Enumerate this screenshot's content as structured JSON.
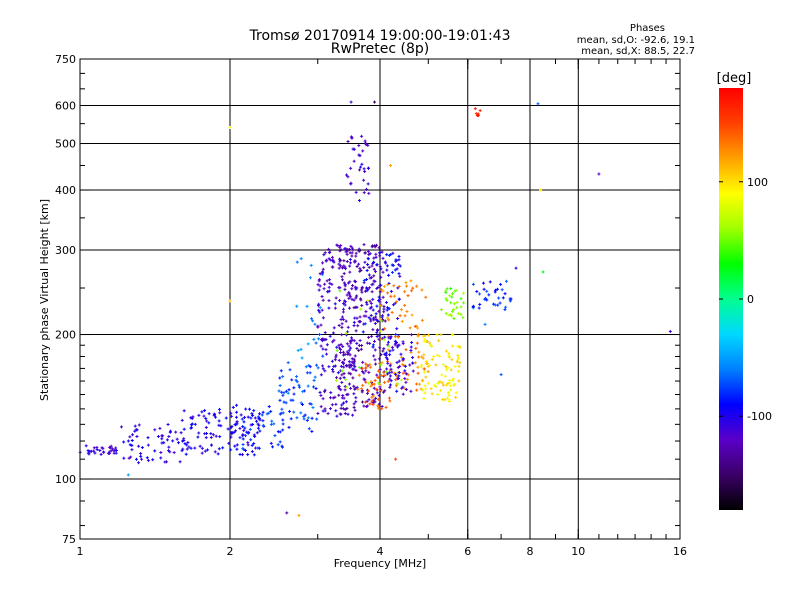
{
  "header": {
    "title_line1": "Tromsø 20170914 19:00:00-19:01:43",
    "title_line2": "RwPretec (8p)"
  },
  "stats": {
    "title": "Phases",
    "line_o": "mean, sd,O: -92.6, 19.1",
    "line_x": "mean, sd,X: 88.5, 22.7"
  },
  "colorbar": {
    "unit_label": "[deg]",
    "tick_values": [
      100,
      0,
      -100
    ],
    "tick_labels": [
      "100",
      "0",
      "-100"
    ],
    "range": [
      -180,
      180
    ],
    "colormap": [
      "#000000",
      "#3b0068",
      "#5a00c8",
      "#0000ff",
      "#0080ff",
      "#00d8ff",
      "#00ff90",
      "#00ff00",
      "#a0ff00",
      "#ffff00",
      "#ffa000",
      "#ff4000",
      "#ff0000"
    ]
  },
  "chart_data": {
    "type": "scatter",
    "title": "Tromsø 20170914 19:00:00-19:01:43",
    "subtitle": "RwPretec (8p)",
    "xlabel": "Frequency [MHz]",
    "ylabel": "Stationary phase Virtual Height [km]",
    "x_scale": "log",
    "y_scale": "log",
    "xlim": [
      1,
      16
    ],
    "ylim": [
      75,
      750
    ],
    "x_ticks": [
      1,
      2,
      4,
      6,
      8,
      10,
      16
    ],
    "x_tick_labels": [
      "1",
      "2",
      "4",
      "6",
      "8",
      "10",
      "16"
    ],
    "y_ticks": [
      75,
      100,
      200,
      300,
      400,
      500,
      600,
      750
    ],
    "y_tick_labels": [
      "75",
      "100",
      "200",
      "300",
      "400",
      "500",
      "600",
      "750"
    ],
    "x_grid": [
      2,
      4,
      6,
      8,
      10
    ],
    "y_grid": [
      100,
      200,
      300,
      400,
      500,
      600
    ],
    "grid": true,
    "clusters": [
      {
        "f_range": [
          1.0,
          1.18
        ],
        "h_range": [
          112,
          118
        ],
        "phase": -110,
        "count": 30
      },
      {
        "f_range": [
          1.18,
          1.6
        ],
        "h_range": [
          108,
          130
        ],
        "phase": -105,
        "count": 60
      },
      {
        "f_range": [
          1.6,
          2.3
        ],
        "h_range": [
          112,
          140
        ],
        "phase": -100,
        "count": 120
      },
      {
        "f_range": [
          2.0,
          2.6
        ],
        "h_range": [
          115,
          145
        ],
        "phase": -80,
        "count": 50
      },
      {
        "f_range": [
          2.5,
          3.0
        ],
        "h_range": [
          125,
          175
        ],
        "phase": -75,
        "count": 60
      },
      {
        "f_range": [
          2.7,
          3.1
        ],
        "h_range": [
          140,
          300
        ],
        "phase": -60,
        "count": 25
      },
      {
        "f_range": [
          3.0,
          3.6
        ],
        "h_range": [
          135,
          310
        ],
        "phase": -115,
        "count": 200
      },
      {
        "f_range": [
          3.3,
          4.1
        ],
        "h_range": [
          140,
          310
        ],
        "phase": -125,
        "count": 250
      },
      {
        "f_range": [
          3.4,
          3.8
        ],
        "h_range": [
          380,
          520
        ],
        "phase": -115,
        "count": 35
      },
      {
        "f_range": [
          3.7,
          4.4
        ],
        "h_range": [
          180,
          300
        ],
        "phase": -95,
        "count": 90
      },
      {
        "f_range": [
          3.6,
          4.2
        ],
        "h_range": [
          140,
          175
        ],
        "phase": 140,
        "count": 40
      },
      {
        "f_range": [
          4.0,
          5.0
        ],
        "h_range": [
          150,
          260
        ],
        "phase": 130,
        "count": 90
      },
      {
        "f_range": [
          4.1,
          4.7
        ],
        "h_range": [
          150,
          200
        ],
        "phase": -110,
        "count": 60
      },
      {
        "f_range": [
          4.8,
          5.8
        ],
        "h_range": [
          145,
          200
        ],
        "phase": 95,
        "count": 90
      },
      {
        "f_range": [
          5.3,
          5.9
        ],
        "h_range": [
          215,
          250
        ],
        "phase": 50,
        "count": 30
      },
      {
        "f_range": [
          6.1,
          7.4
        ],
        "h_range": [
          225,
          260
        ],
        "phase": -80,
        "count": 35
      },
      {
        "f_range": [
          6.2,
          6.4
        ],
        "h_range": [
          565,
          595
        ],
        "phase": 165,
        "count": 6
      },
      {
        "f_range": [
          3.2,
          4.5
        ],
        "h_range": [
          150,
          250
        ],
        "phase": 60,
        "count": 20
      }
    ],
    "outliers": [
      {
        "x": 3.5,
        "y": 610,
        "phase": -110
      },
      {
        "x": 3.9,
        "y": 610,
        "phase": -150
      },
      {
        "x": 2.0,
        "y": 540,
        "phase": 90
      },
      {
        "x": 2.6,
        "y": 85,
        "phase": -130
      },
      {
        "x": 2.75,
        "y": 84,
        "phase": 120
      },
      {
        "x": 1.25,
        "y": 102,
        "phase": -50
      },
      {
        "x": 8.3,
        "y": 605,
        "phase": -70
      },
      {
        "x": 8.4,
        "y": 400,
        "phase": 100
      },
      {
        "x": 11.0,
        "y": 432,
        "phase": -120
      },
      {
        "x": 15.3,
        "y": 203,
        "phase": -110
      },
      {
        "x": 7.0,
        "y": 165,
        "phase": -70
      },
      {
        "x": 6.5,
        "y": 210,
        "phase": -60
      },
      {
        "x": 7.5,
        "y": 275,
        "phase": -100
      },
      {
        "x": 8.5,
        "y": 270,
        "phase": 30
      },
      {
        "x": 4.3,
        "y": 110,
        "phase": 150
      },
      {
        "x": 4.2,
        "y": 450,
        "phase": 120
      },
      {
        "x": 2.0,
        "y": 235,
        "phase": 110
      }
    ]
  }
}
